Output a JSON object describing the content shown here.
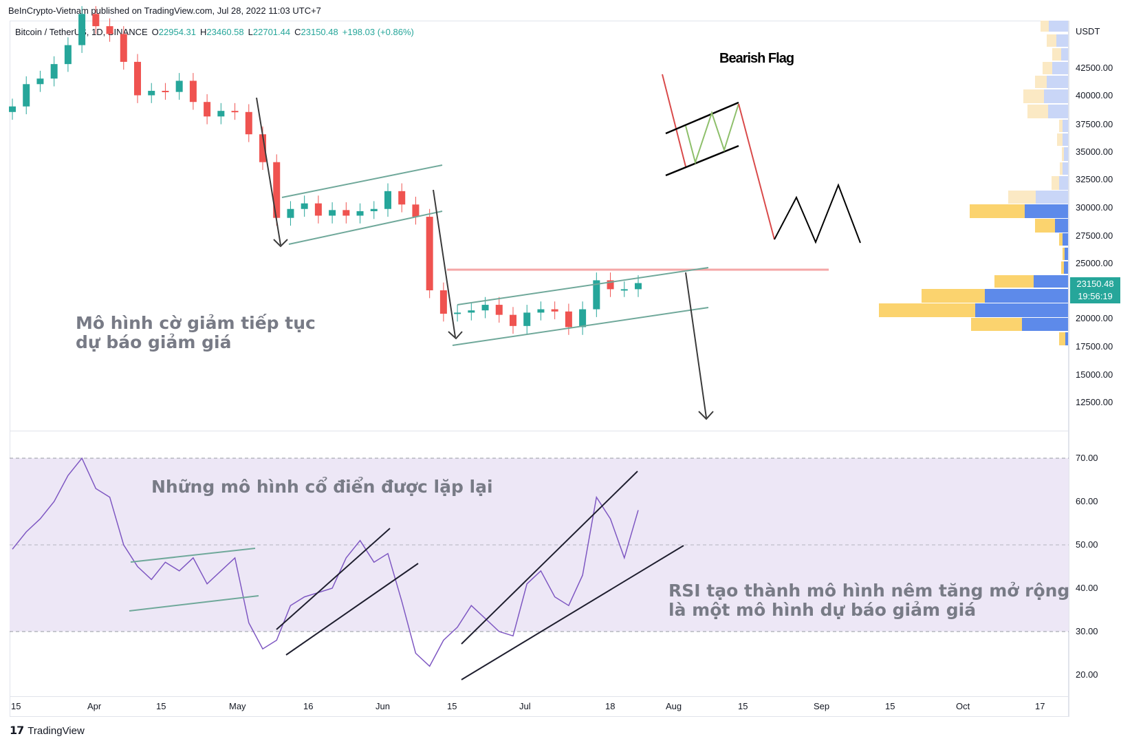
{
  "header": {
    "published": "BeInCrypto-Vietnam published on TradingView.com, Jul 28, 2022 11:03 UTC+7"
  },
  "legend": {
    "symbol": "Bitcoin / TetherUS, 1D, BINANCE",
    "o_label": "O",
    "o": "22954.31",
    "h_label": "H",
    "h": "23460.58",
    "l_label": "L",
    "l": "22701.44",
    "c_label": "C",
    "c": "23150.48",
    "change": "+198.03 (+0.86%)"
  },
  "price_axis": {
    "unit": "USDT",
    "ticks": [
      "42500.00",
      "40000.00",
      "37500.00",
      "35000.00",
      "32500.00",
      "30000.00",
      "27500.00",
      "25000.00",
      "22500.00",
      "20000.00",
      "17500.00",
      "15000.00",
      "12500.00"
    ],
    "current_price": "23150.48",
    "countdown": "19:56:19"
  },
  "rsi_axis": {
    "ticks": [
      "70.00",
      "60.00",
      "50.00",
      "40.00",
      "30.00",
      "20.00"
    ]
  },
  "time_axis": {
    "ticks": [
      "15",
      "Apr",
      "15",
      "May",
      "16",
      "Jun",
      "15",
      "Jul",
      "18",
      "Aug",
      "15",
      "Sep",
      "15",
      "Oct",
      "17"
    ]
  },
  "annotations": {
    "bearish_flag": "Bearish Flag",
    "ann1_line1": "Mô hình cờ giảm tiếp tục",
    "ann1_line2": "dự báo giảm giá",
    "ann2": "Những mô hình cổ điển được lặp lại",
    "ann3_line1": "RSI tạo thành mô hình nêm tăng mở rộng",
    "ann3_line2": "là một mô hình dự báo giảm giá"
  },
  "footer": {
    "brand": "TradingView"
  },
  "colors": {
    "up": "#26a69a",
    "down": "#ef5350",
    "rsi": "#7e57c2",
    "rsi_band": "#ede7f6",
    "resistance": "#f4a6a6",
    "channel": "#6fa89a"
  },
  "chart_data": [
    {
      "type": "candlestick",
      "title": "Bitcoin / TetherUS, 1D, BINANCE",
      "ylabel": "USDT",
      "ylim": [
        11000,
        45000
      ],
      "x": [
        "Mar 15",
        "Mar 18",
        "Mar 21",
        "Mar 24",
        "Mar 27",
        "Mar 30",
        "Apr 2",
        "Apr 5",
        "Apr 8",
        "Apr 11",
        "Apr 14",
        "Apr 17",
        "Apr 20",
        "Apr 23",
        "Apr 26",
        "Apr 29",
        "May 2",
        "May 5",
        "May 8",
        "May 11",
        "May 14",
        "May 17",
        "May 20",
        "May 23",
        "May 26",
        "May 29",
        "Jun 1",
        "Jun 4",
        "Jun 7",
        "Jun 10",
        "Jun 13",
        "Jun 16",
        "Jun 19",
        "Jun 22",
        "Jun 25",
        "Jun 28",
        "Jul 1",
        "Jul 4",
        "Jul 7",
        "Jul 10",
        "Jul 13",
        "Jul 16",
        "Jul 19",
        "Jul 22",
        "Jul 25",
        "Jul 28"
      ],
      "close": [
        39000,
        41000,
        41500,
        42800,
        44500,
        47300,
        46200,
        45500,
        43000,
        40000,
        40400,
        40300,
        41300,
        39400,
        38100,
        38600,
        38500,
        36500,
        34000,
        29000,
        29800,
        30300,
        29200,
        29700,
        29200,
        29600,
        29800,
        31400,
        30200,
        29100,
        22500,
        20400,
        20500,
        20700,
        21200,
        20300,
        19300,
        20500,
        20800,
        20600,
        19200,
        20800,
        23400,
        22600,
        22600,
        23150
      ]
    },
    {
      "type": "line",
      "title": "RSI",
      "ylim": [
        17,
        73
      ],
      "x": [
        "Mar 15",
        "Mar 18",
        "Mar 21",
        "Mar 24",
        "Mar 27",
        "Mar 30",
        "Apr 2",
        "Apr 5",
        "Apr 8",
        "Apr 11",
        "Apr 14",
        "Apr 17",
        "Apr 20",
        "Apr 23",
        "Apr 26",
        "Apr 29",
        "May 2",
        "May 5",
        "May 8",
        "May 11",
        "May 14",
        "May 17",
        "May 20",
        "May 23",
        "May 26",
        "May 29",
        "Jun 1",
        "Jun 4",
        "Jun 7",
        "Jun 10",
        "Jun 13",
        "Jun 16",
        "Jun 19",
        "Jun 22",
        "Jun 25",
        "Jun 28",
        "Jul 1",
        "Jul 4",
        "Jul 7",
        "Jul 10",
        "Jul 13",
        "Jul 16",
        "Jul 19",
        "Jul 22",
        "Jul 25",
        "Jul 28"
      ],
      "values": [
        49,
        53,
        56,
        60,
        66,
        70,
        63,
        61,
        50,
        45,
        42,
        46,
        44,
        47,
        41,
        44,
        47,
        32,
        26,
        28,
        36,
        38,
        39,
        40,
        47,
        51,
        46,
        48,
        37,
        25,
        22,
        28,
        31,
        36,
        33,
        30,
        29,
        41,
        44,
        38,
        36,
        43,
        61,
        56,
        47,
        58
      ]
    }
  ]
}
